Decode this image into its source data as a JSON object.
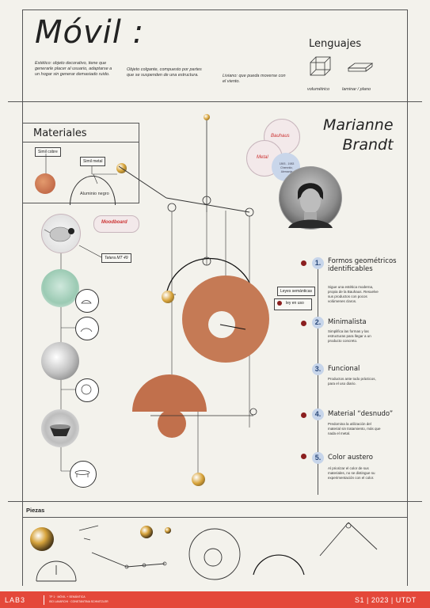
{
  "header": {
    "title": "Móvil :",
    "def_estetico": "Estético: objeto decorativo, tiene que generarle placer al usuario, adaptarse a un hogar sin generar demasiado ruido.",
    "def_colgante": "Objeto colgante, compuesto por partes que se suspenden de una estructura.",
    "def_liviano": "Liviano: que pueda moverse con el viento."
  },
  "lenguajes": {
    "title": "Lenguajes",
    "volumetrico": "volumétrico",
    "laminar": "laminar / plano"
  },
  "materiales": {
    "title": "Materiales",
    "simil_cobre": "Simil cobre",
    "simil_metal": "Simil metal",
    "aluminio": "Aluminio negro",
    "moodboard": "Moodboard",
    "tetera": "Tetera MT 49"
  },
  "designer": {
    "name_line1": "Marianne",
    "name_line2": "Brandt",
    "bauhaus": "Bauhaus",
    "metal": "Metal",
    "dates": "1893 - 1983",
    "place": "Chemnitz, Alemania"
  },
  "leyes": {
    "title": "Leyes semánticas",
    "ley_en_uso": "ley en uso"
  },
  "principles": [
    {
      "n": "1.",
      "title": "Formos geométricos identificables",
      "desc": "Sigue una estética moderna, propia de la Bauhaus. Resuelve sus productos con pocos volúmenes claros."
    },
    {
      "n": "2.",
      "title": "Minimalista",
      "desc": "Simplifica las formas y las estructuras para llegar a un producto concreto."
    },
    {
      "n": "3.",
      "title": "Funcional",
      "desc": "Productos ante todo prácticos, para el uso diario."
    },
    {
      "n": "4.",
      "title": "Material “desnudo”",
      "desc": "Predomina la utilización del material sin tratamiento, más que nada el metal."
    },
    {
      "n": "5.",
      "title": "Color austero",
      "desc": "Al priorizar el color de sus materiales, no se distingue su experimentación con el color."
    }
  ],
  "piezas": {
    "title": "Piezas"
  },
  "footer": {
    "lab": "LAB3",
    "course1": "TP 1 · MÓVIL + SEMÁNTICA",
    "course2": "ISO LAVARCHI · CONSTANTINA SCHNITZLER",
    "term": "S1 | 2023 | UTDT"
  },
  "colors": {
    "accent": "#e4483a",
    "copper": "#c9764f",
    "blue": "#c7d5ea"
  }
}
